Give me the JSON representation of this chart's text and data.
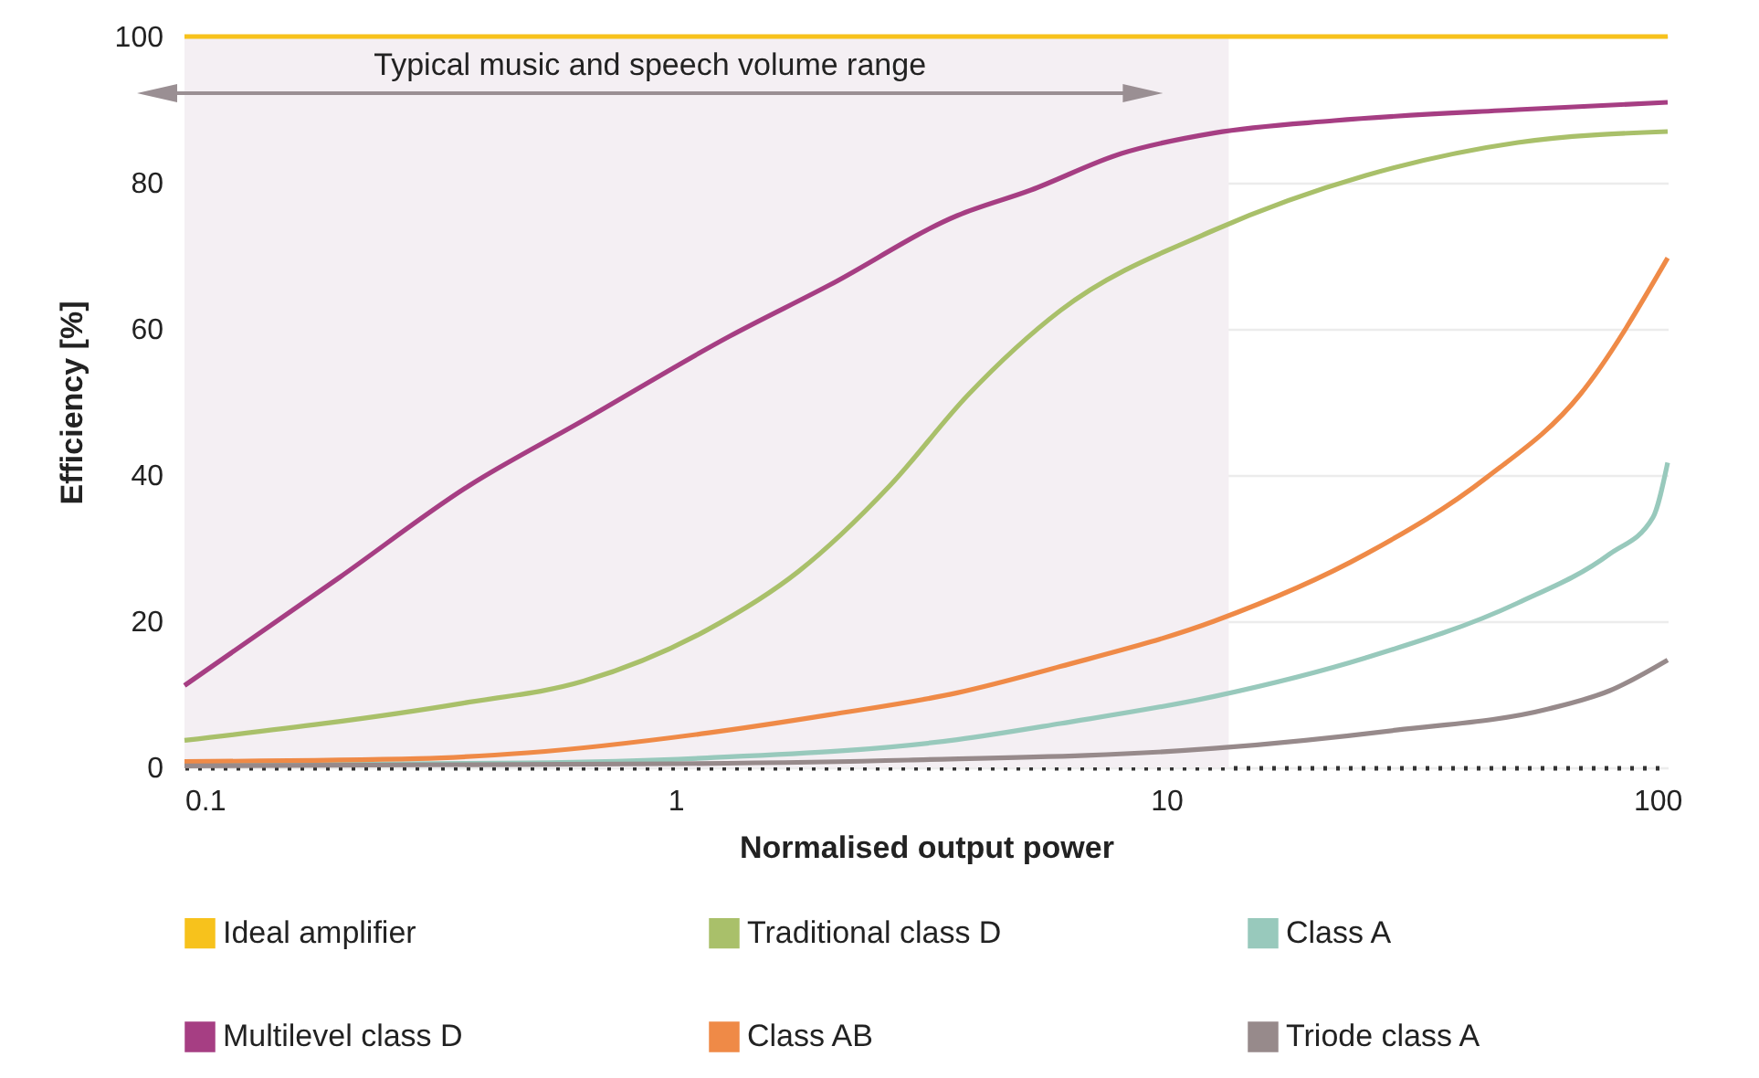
{
  "chart_data": {
    "type": "line",
    "xlabel": "Normalised output power",
    "ylabel": "Efficiency [%]",
    "log": "x",
    "xlim": [
      0.1,
      105
    ],
    "xticks": [
      0.1,
      1,
      10,
      100
    ],
    "ylim": [
      0,
      100
    ],
    "yticks": [
      0,
      20,
      40,
      60,
      80,
      100
    ],
    "grid": "y",
    "legend": "bottom",
    "marker": "none",
    "line_style": "solid",
    "bands": [
      {
        "axis": "x",
        "from": 0.1,
        "to": 13.4,
        "label": "Typical music and speech volume range",
        "color": "#f4eff3"
      }
    ],
    "series": [
      {
        "name": "Ideal amplifier",
        "color": "#f7c21c",
        "x": [
          0.1,
          105
        ],
        "values": [
          100,
          100
        ]
      },
      {
        "name": "Traditional class D",
        "color": "#a9c06a",
        "x": [
          0.1,
          0.37,
          0.65,
          1.16,
          1.78,
          2.73,
          3.95,
          6.08,
          12.5,
          25.5,
          52,
          105
        ],
        "values": [
          3.7,
          8.8,
          11.8,
          18.8,
          26.8,
          38.5,
          51,
          62.5,
          73.5,
          81,
          85.5,
          87
        ]
      },
      {
        "name": "Class A",
        "color": "#98c9bc",
        "x": [
          0.1,
          0.5,
          1.16,
          3.75,
          6.08,
          12.5,
          25.5,
          52,
          80,
          98,
          105
        ],
        "values": [
          0.3,
          0.6,
          1.3,
          3.8,
          6,
          9.7,
          15,
          22.5,
          29.2,
          34.2,
          41.7
        ]
      },
      {
        "name": "Multilevel class D",
        "color": "#a63e83",
        "x": [
          0.1,
          0.207,
          0.379,
          0.65,
          1.29,
          2.06,
          3.75,
          5.3,
          8.1,
          12.5,
          22,
          52,
          105
        ],
        "values": [
          11.2,
          26,
          38.5,
          47.5,
          59,
          66,
          75.5,
          79,
          84,
          86.8,
          88.5,
          90,
          91
        ]
      },
      {
        "name": "Class AB",
        "color": "#ef8a47",
        "x": [
          0.1,
          0.3,
          0.5,
          1.16,
          2.06,
          3.75,
          6.08,
          12.5,
          25.5,
          45,
          69.6,
          105
        ],
        "values": [
          0.8,
          1.2,
          2,
          4.7,
          7.2,
          10.2,
          13.8,
          20,
          29.2,
          39.7,
          51,
          69.7
        ]
      },
      {
        "name": "Triode class A",
        "color": "#978a8b",
        "x": [
          0.1,
          1,
          2.98,
          12.5,
          29.4,
          60,
          80,
          105
        ],
        "values": [
          0.2,
          0.5,
          1,
          2.6,
          5.1,
          8,
          10.5,
          14.7
        ]
      }
    ]
  }
}
